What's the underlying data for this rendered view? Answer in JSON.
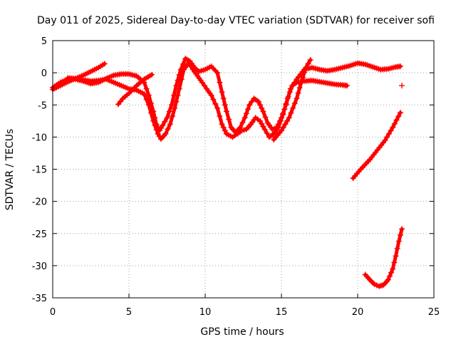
{
  "chart_data": {
    "type": "scatter",
    "title": "Day 011 of 2025, Sidereal Day-to-day VTEC variation (SDTVAR) for receiver sofi",
    "xlabel": "GPS time / hours",
    "ylabel": "SDTVAR / TECUs",
    "xlim": [
      0,
      25
    ],
    "ylim": [
      -35,
      5
    ],
    "xticks": [
      0,
      5,
      10,
      15,
      20,
      25
    ],
    "yticks": [
      5,
      0,
      -5,
      -10,
      -15,
      -20,
      -25,
      -30,
      -35
    ],
    "xtick_labels": [
      "0",
      "5",
      "10",
      "15",
      "20",
      "25"
    ],
    "ytick_labels": [
      "5",
      "0",
      "-5",
      "-10",
      "-15",
      "-20",
      "-25",
      "-30",
      "-35"
    ],
    "grid": true,
    "marker": "plus",
    "color": "#ff0000",
    "series": [
      {
        "name": "track-1",
        "points": [
          [
            0,
            -2.6
          ],
          [
            0.5,
            -2.0
          ],
          [
            1.0,
            -1.4
          ],
          [
            1.5,
            -0.9
          ],
          [
            2.0,
            -0.4
          ],
          [
            2.5,
            0.2
          ],
          [
            3.0,
            0.8
          ],
          [
            3.4,
            1.4
          ]
        ]
      },
      {
        "name": "track-2",
        "points": [
          [
            0,
            -2.3
          ],
          [
            0.5,
            -1.5
          ],
          [
            1.0,
            -1.0
          ],
          [
            1.5,
            -1.0
          ],
          [
            2.0,
            -1.3
          ],
          [
            2.5,
            -1.7
          ],
          [
            3.0,
            -1.5
          ],
          [
            3.5,
            -0.9
          ],
          [
            4.0,
            -0.4
          ],
          [
            4.5,
            -0.2
          ],
          [
            5.0,
            -0.2
          ],
          [
            5.5,
            -0.5
          ],
          [
            6.0,
            -1.5
          ],
          [
            6.3,
            -3.5
          ],
          [
            6.6,
            -6.0
          ],
          [
            6.8,
            -8.0
          ],
          [
            7.0,
            -9.0
          ],
          [
            7.2,
            -8.2
          ],
          [
            7.5,
            -7.0
          ],
          [
            7.8,
            -5.0
          ],
          [
            8.1,
            -2.0
          ],
          [
            8.4,
            0.5
          ],
          [
            8.7,
            2.2
          ],
          [
            9.0,
            1.8
          ],
          [
            9.3,
            0.8
          ],
          [
            9.6,
            0.2
          ],
          [
            10.0,
            0.5
          ],
          [
            10.4,
            1.0
          ],
          [
            10.8,
            0.0
          ],
          [
            11.1,
            -3.0
          ],
          [
            11.4,
            -6.0
          ],
          [
            11.7,
            -8.5
          ],
          [
            12.0,
            -9.3
          ],
          [
            12.3,
            -8.5
          ],
          [
            12.6,
            -7.0
          ],
          [
            12.9,
            -5.0
          ],
          [
            13.2,
            -4.0
          ],
          [
            13.5,
            -4.5
          ],
          [
            13.8,
            -6.0
          ],
          [
            14.1,
            -7.8
          ],
          [
            14.4,
            -8.8
          ],
          [
            14.7,
            -8.5
          ],
          [
            15.0,
            -7.0
          ],
          [
            15.3,
            -5.0
          ],
          [
            15.6,
            -2.5
          ],
          [
            16.0,
            -1.0
          ],
          [
            16.5,
            0.5
          ],
          [
            17.0,
            0.8
          ],
          [
            17.5,
            0.5
          ],
          [
            18.0,
            0.3
          ],
          [
            18.5,
            0.5
          ],
          [
            19.0,
            0.8
          ],
          [
            19.5,
            1.1
          ],
          [
            20.0,
            1.5
          ],
          [
            20.5,
            1.3
          ],
          [
            21.0,
            0.9
          ],
          [
            21.5,
            0.5
          ],
          [
            22.0,
            0.6
          ],
          [
            22.5,
            0.9
          ],
          [
            22.8,
            1.0
          ]
        ]
      },
      {
        "name": "track-3",
        "points": [
          [
            1.0,
            -0.8
          ],
          [
            1.5,
            -0.9
          ],
          [
            2.0,
            -1.1
          ],
          [
            2.5,
            -1.3
          ],
          [
            3.0,
            -1.2
          ],
          [
            3.5,
            -1.0
          ],
          [
            4.0,
            -1.5
          ],
          [
            4.5,
            -2.0
          ],
          [
            5.0,
            -2.5
          ],
          [
            5.5,
            -2.7
          ],
          [
            6.0,
            -3.3
          ],
          [
            6.3,
            -5.0
          ],
          [
            6.6,
            -7.5
          ],
          [
            6.9,
            -9.5
          ],
          [
            7.1,
            -10.3
          ],
          [
            7.4,
            -9.5
          ],
          [
            7.7,
            -8.0
          ],
          [
            8.0,
            -5.5
          ],
          [
            8.3,
            -2.5
          ],
          [
            8.6,
            0.5
          ],
          [
            8.9,
            1.5
          ],
          [
            9.2,
            0.5
          ],
          [
            9.5,
            -0.5
          ],
          [
            9.8,
            -1.5
          ],
          [
            10.1,
            -2.5
          ],
          [
            10.4,
            -3.5
          ],
          [
            10.8,
            -5.5
          ],
          [
            11.1,
            -8.0
          ],
          [
            11.4,
            -9.5
          ],
          [
            11.8,
            -10.0
          ],
          [
            12.1,
            -9.5
          ],
          [
            12.4,
            -9.0
          ],
          [
            12.7,
            -8.8
          ],
          [
            13.0,
            -8.0
          ],
          [
            13.3,
            -7.0
          ],
          [
            13.6,
            -7.5
          ],
          [
            13.9,
            -8.8
          ],
          [
            14.2,
            -10.0
          ],
          [
            14.5,
            -9.5
          ],
          [
            14.8,
            -8.5
          ],
          [
            15.1,
            -6.5
          ],
          [
            15.4,
            -4.0
          ],
          [
            15.7,
            -2.0
          ],
          [
            16.0,
            -1.5
          ],
          [
            16.5,
            -1.3
          ],
          [
            17.0,
            -1.2
          ],
          [
            17.5,
            -1.4
          ],
          [
            18.0,
            -1.6
          ],
          [
            18.5,
            -1.8
          ],
          [
            19.0,
            -1.9
          ],
          [
            19.3,
            -2.0
          ]
        ]
      },
      {
        "name": "track-4",
        "points": [
          [
            4.3,
            -4.9
          ],
          [
            4.6,
            -4.0
          ],
          [
            5.0,
            -3.2
          ],
          [
            5.5,
            -2.0
          ],
          [
            6.0,
            -1.0
          ],
          [
            6.5,
            -0.3
          ]
        ]
      },
      {
        "name": "track-5",
        "points": [
          [
            14.5,
            -10.4
          ],
          [
            15.0,
            -9.0
          ],
          [
            15.5,
            -7.0
          ],
          [
            16.0,
            -4.0
          ],
          [
            16.3,
            -1.5
          ],
          [
            16.6,
            0.8
          ],
          [
            16.9,
            2.0
          ]
        ]
      },
      {
        "name": "track-6",
        "points": [
          [
            19.7,
            -16.4
          ],
          [
            20.2,
            -15.0
          ],
          [
            20.8,
            -13.5
          ],
          [
            21.3,
            -12.0
          ],
          [
            21.8,
            -10.5
          ],
          [
            22.3,
            -8.5
          ],
          [
            22.8,
            -6.2
          ]
        ]
      },
      {
        "name": "track-7",
        "points": [
          [
            20.5,
            -31.4
          ],
          [
            20.8,
            -32.2
          ],
          [
            21.1,
            -32.9
          ],
          [
            21.4,
            -33.2
          ],
          [
            21.7,
            -33.0
          ],
          [
            22.0,
            -32.2
          ],
          [
            22.3,
            -30.5
          ],
          [
            22.5,
            -28.5
          ],
          [
            22.7,
            -26.2
          ],
          [
            22.9,
            -24.3
          ]
        ]
      },
      {
        "name": "isolated-point",
        "points": [
          [
            22.9,
            -2.0
          ]
        ]
      }
    ]
  }
}
